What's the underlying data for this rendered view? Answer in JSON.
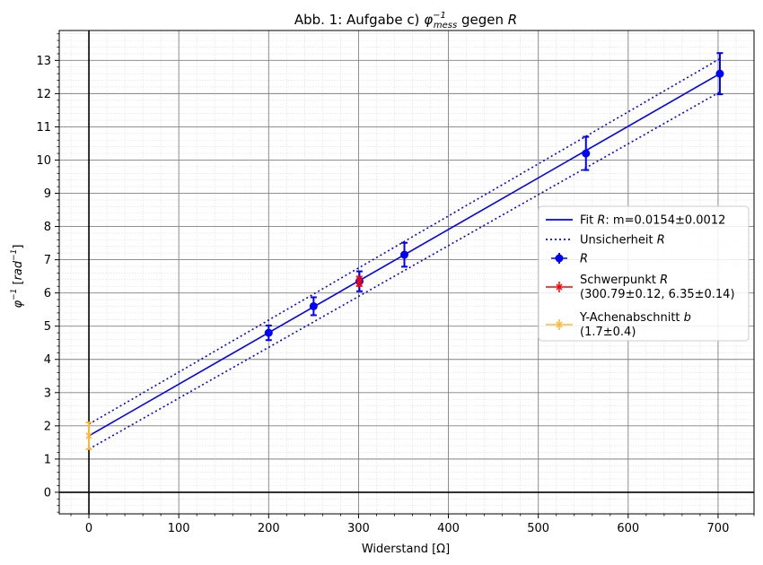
{
  "chart_data": {
    "type": "scatter",
    "title": "Abb. 1: Aufgabe c) φ⁻¹ₘₑₛₛ gegen R",
    "title_parts": {
      "prefix": "Abb. 1: Aufgabe c) ",
      "symbol": "φ",
      "superscript": "−1",
      "subscript": "mess",
      "suffix": " gegen ",
      "suffix_var": "R"
    },
    "xlabel": "Widerstand [Ω]",
    "ylabel": "φ⁻¹ [rad⁻¹]",
    "ylabel_parts": {
      "symbol": "φ",
      "sup": "−1",
      "bracket_open": " [",
      "unit": "rad",
      "unit_sup": "−1",
      "bracket_close": "]"
    },
    "xlim": [
      -33,
      740
    ],
    "ylim": [
      -0.65,
      13.9
    ],
    "xticks": [
      0,
      100,
      200,
      300,
      400,
      500,
      600,
      700
    ],
    "yticks": [
      0,
      1,
      2,
      3,
      4,
      5,
      6,
      7,
      8,
      9,
      10,
      11,
      12,
      13
    ],
    "grid": true,
    "legend_position": "center-right",
    "colors": {
      "data": "#0000ff",
      "schwerpunkt": "#ff0000",
      "intercept": "#ffb833",
      "major_grid": "#808080",
      "minor_grid": "#dddddd"
    },
    "series": [
      {
        "name": "R",
        "kind": "errorbar",
        "x": [
          200,
          250,
          301,
          351,
          553,
          702
        ],
        "y": [
          4.8,
          5.6,
          6.35,
          7.15,
          10.2,
          12.6
        ],
        "yerr": [
          0.22,
          0.27,
          0.3,
          0.36,
          0.5,
          0.62
        ],
        "xerr": [
          1,
          1,
          1,
          1,
          1,
          1
        ]
      },
      {
        "name": "Schwerpunkt R",
        "kind": "errorbar",
        "x": [
          300.79
        ],
        "y": [
          6.35
        ],
        "yerr": [
          0.14
        ],
        "xerr": [
          0.12
        ]
      },
      {
        "name": "Y-Achenabschnitt b",
        "kind": "errorbar",
        "x": [
          0
        ],
        "y": [
          1.7
        ],
        "yerr": [
          0.4
        ],
        "xerr": [
          0
        ]
      },
      {
        "name": "Fit R",
        "kind": "line",
        "x": [
          0,
          702
        ],
        "y": [
          1.7,
          12.6
        ]
      },
      {
        "name": "Unsicherheit R",
        "kind": "dotted",
        "lines": [
          {
            "x": [
              0,
              702
            ],
            "y": [
              2.05,
              13.05
            ]
          },
          {
            "x": [
              0,
              702
            ],
            "y": [
              1.3,
              12.05
            ]
          }
        ]
      }
    ],
    "legend": [
      {
        "label": "Fit ",
        "label_var": "R",
        "label_tail": ": m=0.0154±0.0012",
        "style": "line",
        "color": "#0000ff"
      },
      {
        "label": "Unsicherheit ",
        "label_var": "R",
        "label_tail": "",
        "style": "dotted",
        "color": "#0000ff"
      },
      {
        "label": "",
        "label_var": "R",
        "label_tail": "",
        "style": "errorbar-dot",
        "color": "#0000ff"
      },
      {
        "label": "Schwerpunkt ",
        "label_var": "R",
        "label_tail": "",
        "line2": "(300.79±0.12, 6.35±0.14)",
        "style": "errorbar-x",
        "color": "#ff0000"
      },
      {
        "label": "Y-Achenabschnitt ",
        "label_var": "b",
        "label_tail": "",
        "line2": "(1.7±0.4)",
        "style": "errorbar-x",
        "color": "#ffb833"
      }
    ]
  }
}
